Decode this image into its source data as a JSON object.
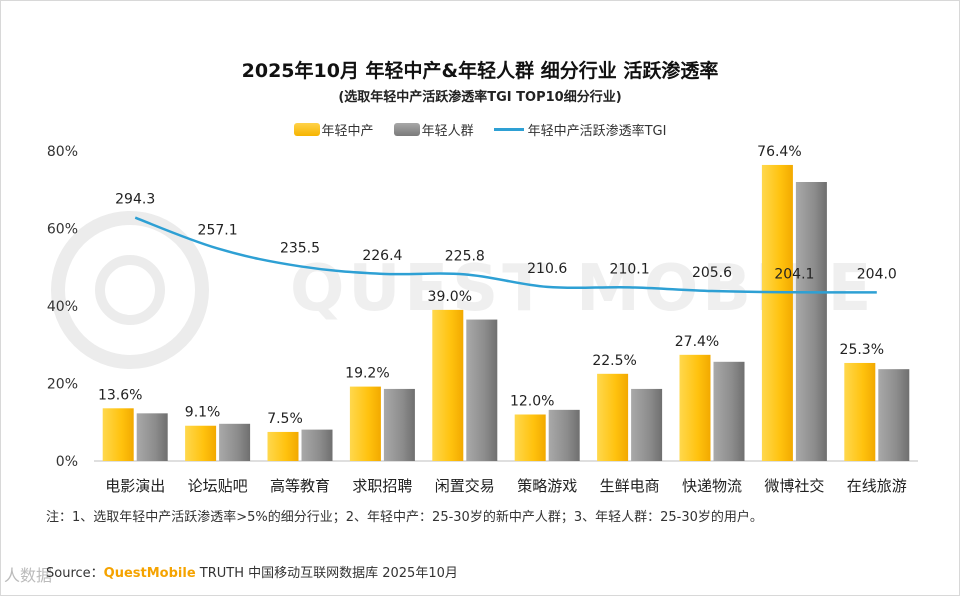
{
  "header": {
    "title": "2025年10月 年轻中产&年轻人群 细分行业 活跃渗透率",
    "subtitle": "(选取年轻中产活跃渗透率TGI TOP10细分行业)"
  },
  "watermark": "QUEST MOBILE",
  "corner_mark": "人数据",
  "chart_data": {
    "type": "bar",
    "categories": [
      "电影演出",
      "论坛贴吧",
      "高等教育",
      "求职招聘",
      "闲置交易",
      "策略游戏",
      "生鲜电商",
      "快递物流",
      "微博社交",
      "在线旅游"
    ],
    "series": [
      {
        "name": "年轻中产",
        "color": "#ffc20e",
        "values": [
          13.6,
          9.1,
          7.5,
          19.2,
          39.0,
          12.0,
          22.5,
          27.4,
          76.4,
          25.3
        ],
        "labels": [
          "13.6%",
          "9.1%",
          "7.5%",
          "19.2%",
          "39.0%",
          "12.0%",
          "22.5%",
          "27.4%",
          "76.4%",
          "25.3%"
        ]
      },
      {
        "name": "年轻人群",
        "color": "#8c8c8c",
        "values": [
          12.3,
          9.6,
          8.1,
          18.6,
          36.5,
          13.2,
          18.6,
          25.6,
          72.0,
          23.7
        ]
      },
      {
        "name": "年轻中产活跃渗透率TGI",
        "type": "line",
        "color": "#2ea0d4",
        "values": [
          294.3,
          257.1,
          235.5,
          226.4,
          225.8,
          210.6,
          210.1,
          205.6,
          204.1,
          204.0
        ],
        "labels": [
          "294.3",
          "257.1",
          "235.5",
          "226.4",
          "225.8",
          "210.6",
          "210.1",
          "205.6",
          "204.1",
          "204.0"
        ]
      }
    ],
    "yticks": [
      "0%",
      "20%",
      "40%",
      "60%",
      "80%"
    ],
    "ylim": [
      0,
      80
    ],
    "y2lim": [
      0,
      375
    ],
    "title": "2025年10月 年轻中产&年轻人群 细分行业 活跃渗透率",
    "xlabel": "",
    "ylabel": "",
    "legend": "top-center",
    "grid": false
  },
  "footer": {
    "note": "注：1、选取年轻中产活跃渗透率>5%的细分行业；2、年轻中产：25-30岁的新中产人群；3、年轻人群：25-30岁的用户。",
    "source_prefix": "Source：",
    "source_brand": "QuestMobile",
    "source_rest": " TRUTH 中国移动互联网数据库 2025年10月"
  }
}
